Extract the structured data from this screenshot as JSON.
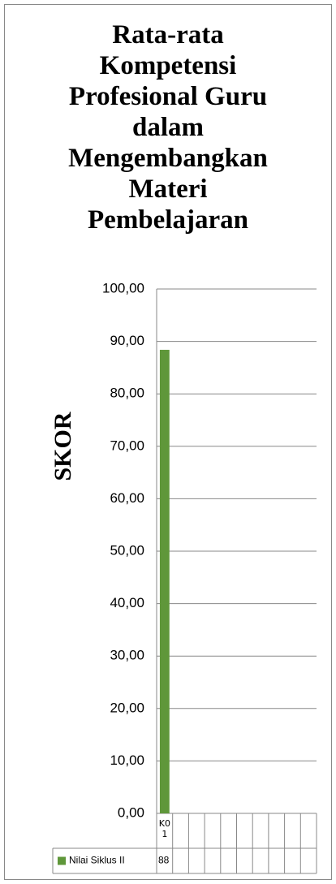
{
  "chart_data": {
    "type": "bar",
    "title": "Rata-rata Kompetensi Profesional Guru dalam Mengembangkan Materi Pembelajaran",
    "y_label": "SKOR",
    "categories": [
      "K01",
      null,
      null,
      null,
      null,
      null,
      null,
      null,
      null,
      null
    ],
    "series": [
      {
        "name": "Nilai Siklus II",
        "color": "#5f973a",
        "values": [
          88.4,
          null,
          null,
          null,
          null,
          null,
          null,
          null,
          null,
          null
        ],
        "value_labels": [
          "88",
          null,
          null,
          null,
          null,
          null,
          null,
          null,
          null,
          null
        ]
      }
    ],
    "ylim": [
      0,
      100
    ],
    "yticks": [
      {
        "value": 0,
        "label": "0,00"
      },
      {
        "value": 10,
        "label": "10,00"
      },
      {
        "value": 20,
        "label": "20,00"
      },
      {
        "value": 30,
        "label": "30,00"
      },
      {
        "value": 40,
        "label": "40,00"
      },
      {
        "value": 50,
        "label": "50,00"
      },
      {
        "value": 60,
        "label": "60,00"
      },
      {
        "value": 70,
        "label": "70,00"
      },
      {
        "value": 80,
        "label": "80,00"
      },
      {
        "value": 90,
        "label": "90,00"
      },
      {
        "value": 100,
        "label": "100,00"
      }
    ],
    "grid": true,
    "data_table": true
  }
}
